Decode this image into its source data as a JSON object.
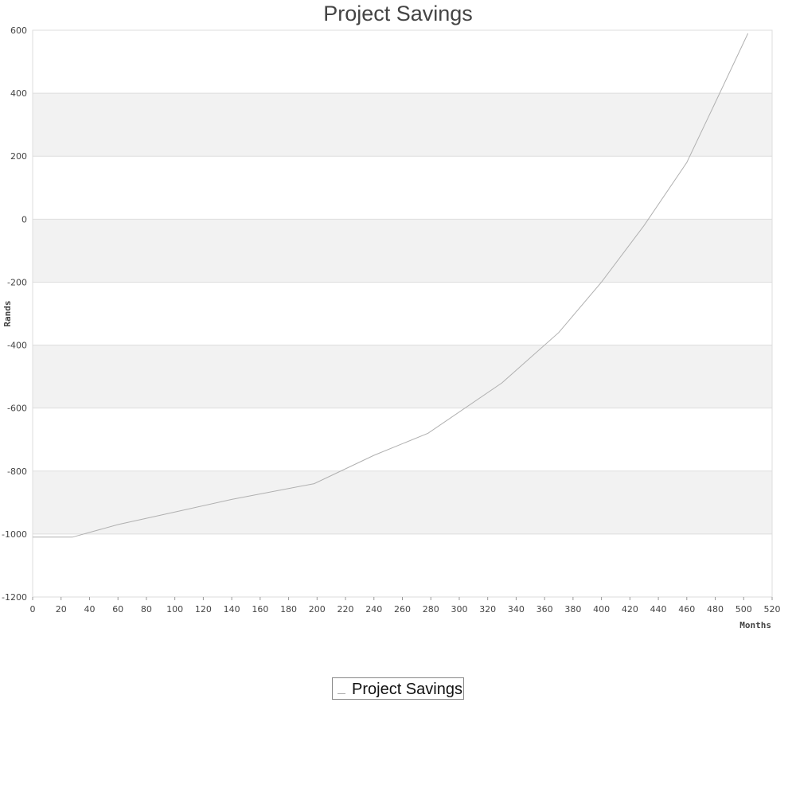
{
  "chart_data": {
    "type": "line",
    "title": "Project Savings",
    "xlabel": "Months",
    "ylabel": "Rands",
    "xlim": [
      0,
      520
    ],
    "ylim": [
      -1200,
      600
    ],
    "x_ticks": [
      0,
      20,
      40,
      60,
      80,
      100,
      120,
      140,
      160,
      180,
      200,
      220,
      240,
      260,
      280,
      300,
      320,
      340,
      360,
      380,
      400,
      420,
      440,
      460,
      480,
      500,
      520
    ],
    "y_ticks": [
      600,
      400,
      200,
      0,
      -200,
      -400,
      -600,
      -800,
      -1000,
      -1200
    ],
    "grid": "alternating horizontal bands",
    "legend_position": "bottom-center",
    "colors": {
      "line": "#b0b0b0",
      "band": "#f2f2f2",
      "grid": "#dddddd"
    },
    "series": [
      {
        "name": "Project Savings",
        "x": [
          0,
          28,
          60,
          100,
          140,
          198,
          240,
          278,
          330,
          370,
          400,
          430,
          460,
          480,
          503
        ],
        "values": [
          -1010,
          -1010,
          -970,
          -930,
          -890,
          -840,
          -750,
          -680,
          -520,
          -360,
          -200,
          -20,
          180,
          370,
          590
        ]
      }
    ]
  }
}
